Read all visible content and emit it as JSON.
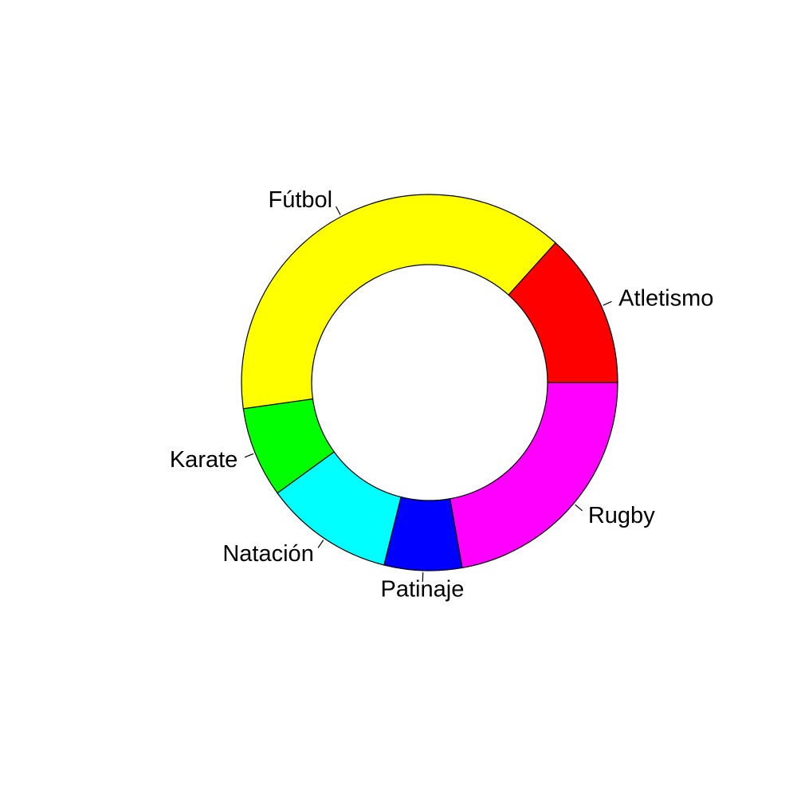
{
  "chart_data": {
    "type": "pie",
    "title": "",
    "donut": true,
    "start_direction": "counterclockwise from 3 o'clock",
    "categories": [
      "Atletismo",
      "Fútbol",
      "Karate",
      "Natación",
      "Patinaje",
      "Rugby"
    ],
    "values": [
      12,
      35,
      7,
      10,
      6,
      20
    ],
    "colors": [
      "#ff0000",
      "#ffff00",
      "#00ff00",
      "#00ffff",
      "#0000ff",
      "#ff00ff"
    ],
    "legend": "none"
  }
}
